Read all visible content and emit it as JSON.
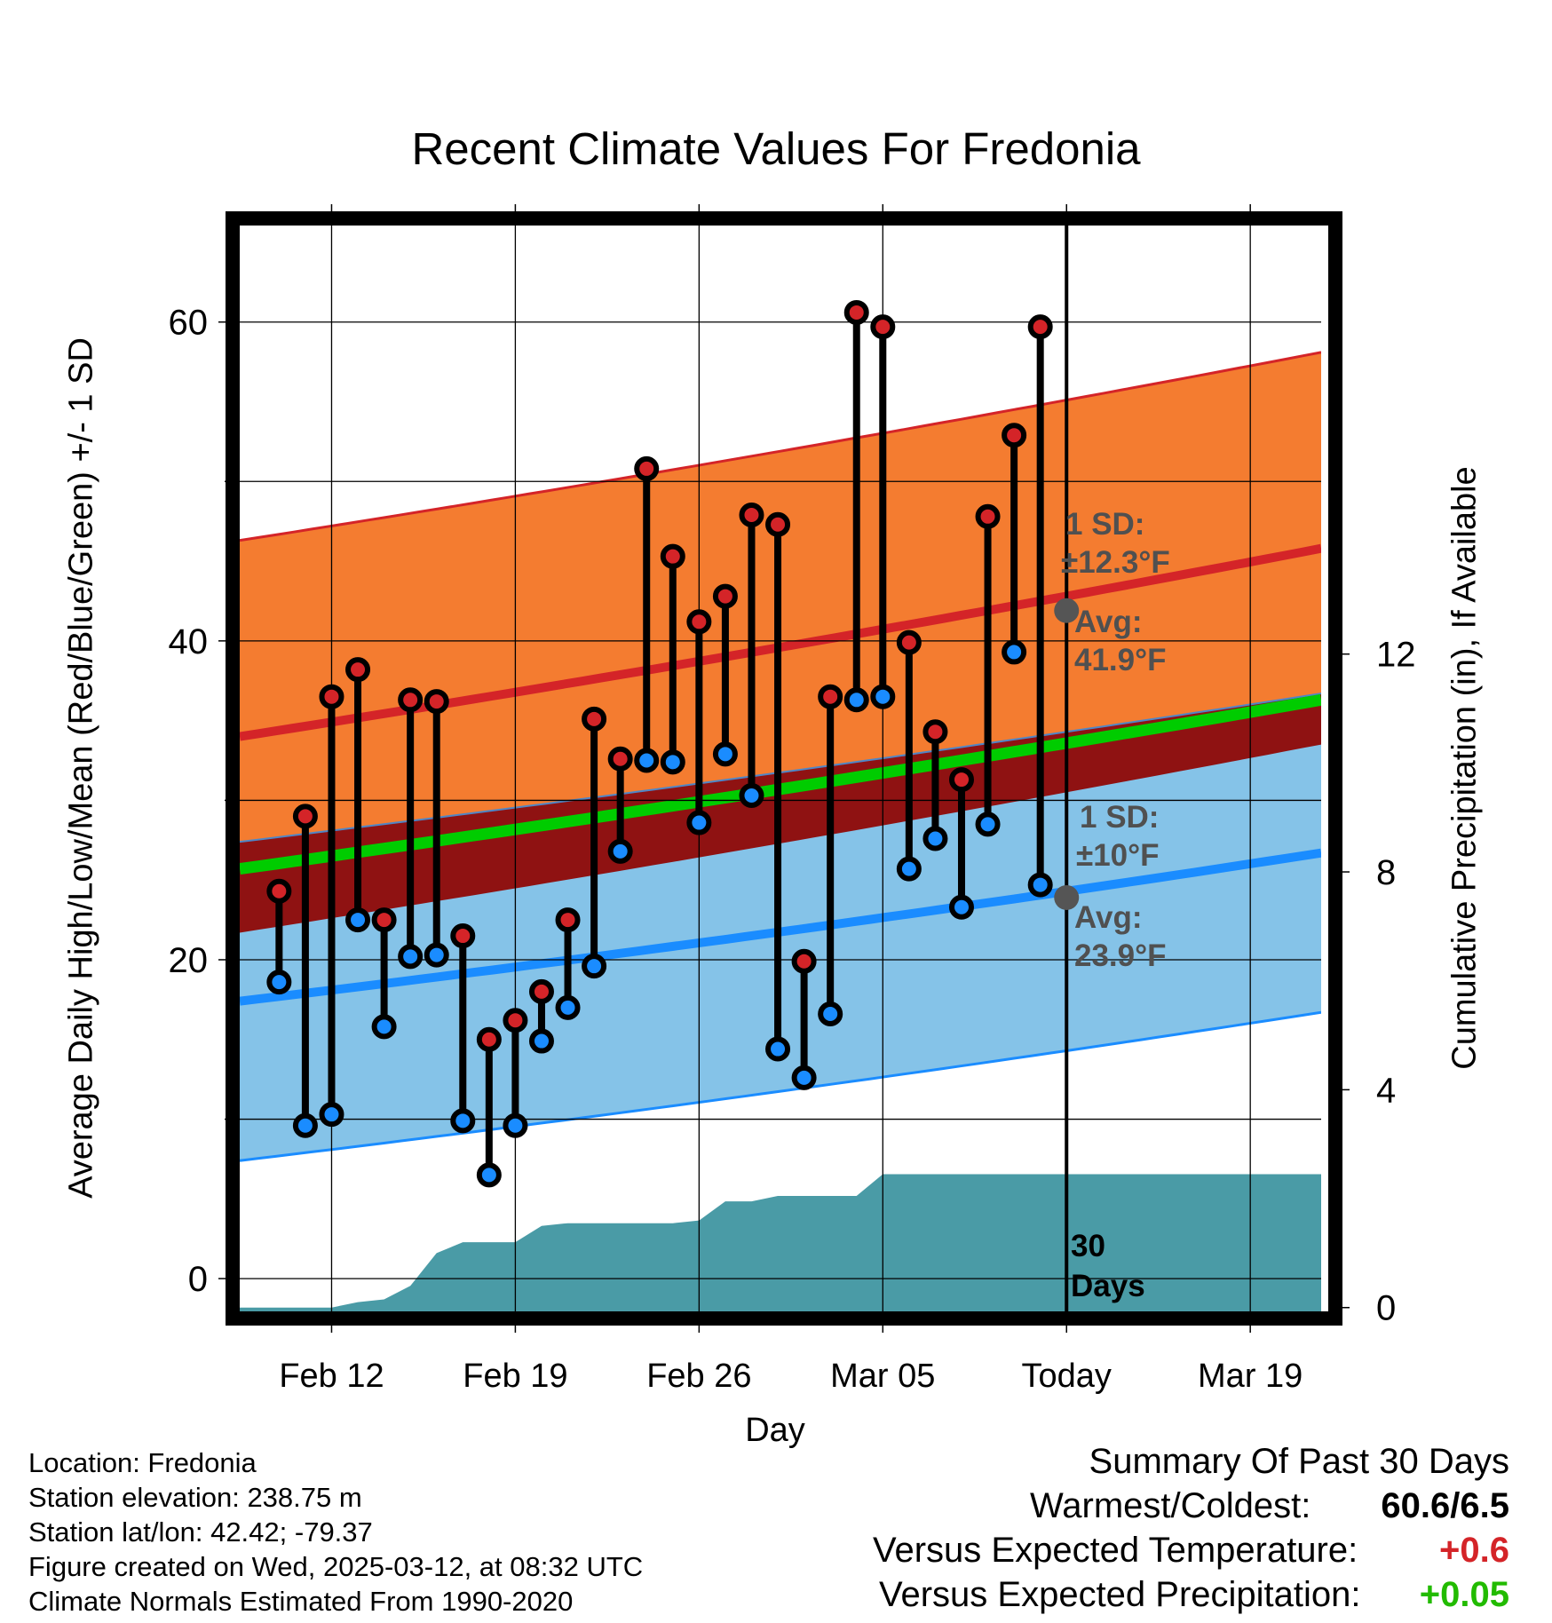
{
  "chart_data": {
    "type": "range",
    "title": "Recent Climate Values For Fredonia",
    "xlabel": "Day",
    "ylabel": "Average Daily High/Low/Mean (Red/Blue/Green) +/- 1 SD",
    "y2label": "Cumulative Precipitation (in), If Available",
    "ylim": [
      -2.5,
      66.5
    ],
    "y2lim": [
      -0.2,
      20
    ],
    "x_tick_labels": [
      "Feb 12",
      "Feb 19",
      "Feb 26",
      "Mar 05",
      "Today",
      "Mar 19"
    ],
    "x_tick_days": [
      -28,
      -21,
      -14,
      -7,
      0,
      7
    ],
    "xlim_days": [
      -31.5,
      9.7
    ],
    "y_ticks": [
      0,
      20,
      40,
      60
    ],
    "y2_ticks": [
      0,
      4,
      8,
      12
    ],
    "grid": true,
    "days": [
      -30,
      -29,
      -28,
      -27,
      -26,
      -25,
      -24,
      -23,
      -22,
      -21,
      -20,
      -19,
      -18,
      -17,
      -16,
      -15,
      -14,
      -13,
      -12,
      -11,
      -10,
      -9,
      -8,
      -7,
      -6,
      -5,
      -4,
      -3,
      -2,
      -1
    ],
    "series": [
      {
        "name": "High",
        "color": "#d42428",
        "values": [
          24.3,
          29.0,
          36.5,
          38.2,
          22.5,
          36.3,
          36.2,
          21.5,
          15.0,
          16.2,
          18.0,
          22.5,
          35.1,
          32.6,
          50.8,
          45.3,
          41.2,
          42.8,
          47.9,
          47.3,
          19.9,
          36.5,
          60.6,
          59.7,
          39.9,
          34.3,
          31.3,
          47.8,
          52.9,
          59.7
        ]
      },
      {
        "name": "Low",
        "color": "#1a8cff",
        "values": [
          18.6,
          9.6,
          10.3,
          22.5,
          15.8,
          20.2,
          20.3,
          9.9,
          6.5,
          9.6,
          14.9,
          17.0,
          19.6,
          26.8,
          32.5,
          32.4,
          28.6,
          32.9,
          30.3,
          14.4,
          12.6,
          16.6,
          36.3,
          36.5,
          25.7,
          27.6,
          23.3,
          28.5,
          39.3,
          24.7
        ]
      },
      {
        "name": "Normal High",
        "color": "#d42428",
        "values_at_xlim": [
          34.0,
          45.8
        ],
        "today": 41.9,
        "sd": 12.3
      },
      {
        "name": "Normal Low",
        "color": "#1a8cff",
        "values_at_xlim": [
          17.4,
          26.7
        ],
        "today": 23.9,
        "sd": 10
      },
      {
        "name": "Normal Mean",
        "color": "#00cc00",
        "values_at_xlim": [
          25.7,
          36.3
        ]
      },
      {
        "name": "Cumulative Precipitation",
        "color": "#4a9ba6",
        "days": [
          -31.5,
          -29,
          -28,
          -27,
          -26,
          -25,
          -24,
          -23,
          -22,
          -21,
          -20,
          -19,
          -18,
          -17,
          -16,
          -15,
          -14,
          -13,
          -12,
          -11,
          -10,
          -9,
          -8,
          -7,
          -6,
          -5,
          -4,
          -3,
          -2,
          -1,
          0,
          9.7
        ],
        "values": [
          0,
          0,
          0,
          0.1,
          0.15,
          0.4,
          1.0,
          1.2,
          1.2,
          1.2,
          1.5,
          1.55,
          1.55,
          1.55,
          1.55,
          1.55,
          1.6,
          1.95,
          1.95,
          2.05,
          2.05,
          2.05,
          2.05,
          2.45,
          2.45,
          2.45,
          2.45,
          2.45,
          2.45,
          2.45,
          2.45,
          2.45
        ]
      }
    ],
    "annotations": {
      "high_sd_label": "1 SD:",
      "high_sd_value": "±12.3°F",
      "high_avg_label": "Avg:",
      "high_avg_value": "41.9°F",
      "low_sd_label": "1 SD:",
      "low_sd_value": "±10°F",
      "low_avg_label": "Avg:",
      "low_avg_value": "23.9°F",
      "days_line1": "30",
      "days_line2": "Days"
    }
  },
  "footer": {
    "location": "Location: Fredonia",
    "elevation": "Station elevation: 238.75 m",
    "latlon": "Station lat/lon: 42.42; -79.37",
    "created": "Figure created on Wed, 2025-03-12, at 08:32 UTC",
    "normals": "Climate Normals Estimated From 1990-2020"
  },
  "summary": {
    "heading": "Summary Of Past 30 Days",
    "warm_cold_label": "Warmest/Coldest:",
    "warm_cold_value": "60.6/6.5",
    "temp_label": "Versus Expected Temperature:",
    "temp_value": "+0.6",
    "temp_color": "#d42428",
    "precip_label": "Versus Expected Precipitation:",
    "precip_value": "+0.05",
    "precip_color": "#22bb00"
  }
}
